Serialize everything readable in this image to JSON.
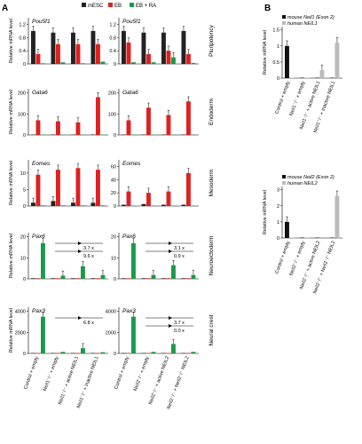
{
  "figure": {
    "label_a": "A",
    "label_b": "B",
    "row_labels": [
      "Pluripotency",
      "Endoderm",
      "Mesoderm",
      "Neuroectoderm",
      "Neural crest"
    ]
  },
  "legend": {
    "items": [
      {
        "label": "mESC",
        "color": "#222222"
      },
      {
        "label": "EB",
        "color": "#e02020"
      },
      {
        "label": "EB + RA",
        "color": "#1a9a4a"
      }
    ]
  },
  "xlabels": {
    "col1": [
      "Control + empty",
      "Neil1⁻/⁻ + empty",
      "Neil1⁻/⁻ + active NEIL1",
      "Neil1⁻/⁻ + inactive NEIL1"
    ],
    "col2": [
      "Control + empty",
      "Neil2⁻/⁻ + empty",
      "Neil2⁻/⁻ + active NEIL2",
      "Neil2⁻/⁻ + Neil2⁻/⁻ NEIL2"
    ]
  },
  "annotations": {
    "pax6_col1": [
      "3.7 x",
      "9.6 x"
    ],
    "pax6_col2": [
      "3.1 x",
      "0.9 x"
    ],
    "pax3_col1": [
      "6.8 x"
    ],
    "pax3_col2": [
      "3.7 x",
      "0.0 x"
    ]
  },
  "chart_data": [
    {
      "type": "bar",
      "panel": "A",
      "title": "Pou5f1",
      "ylabel": "Relative mRNA level",
      "ylim": [
        0,
        1.4
      ],
      "yticks": [
        0,
        0.4,
        0.8,
        1.2
      ],
      "categories": [
        "Control + empty",
        "Neil1⁻/⁻ + empty",
        "Neil1⁻/⁻ + active NEIL1",
        "Neil1⁻/⁻ + inactive NEIL1"
      ],
      "series": [
        {
          "name": "mESC",
          "values": [
            1.0,
            0.95,
            0.95,
            1.0
          ]
        },
        {
          "name": "EB",
          "values": [
            0.3,
            0.6,
            0.6,
            0.6
          ]
        },
        {
          "name": "EB + RA",
          "values": [
            0.02,
            0.05,
            0.02,
            0.07
          ]
        }
      ]
    },
    {
      "type": "bar",
      "panel": "A",
      "title": "Pou5f1",
      "ylabel": "",
      "ylim": [
        0,
        1.4
      ],
      "yticks": [
        0,
        0.4,
        0.8,
        1.2
      ],
      "categories": [
        "Control + empty",
        "Neil2⁻/⁻ + empty",
        "Neil2⁻/⁻ + active NEIL2",
        "Neil2⁻/⁻ + Neil2⁻/⁻ NEIL2"
      ],
      "series": [
        {
          "name": "mESC",
          "values": [
            1.0,
            0.95,
            0.95,
            1.0
          ]
        },
        {
          "name": "EB",
          "values": [
            0.65,
            0.3,
            0.4,
            0.3
          ]
        },
        {
          "name": "EB + RA",
          "values": [
            0.05,
            0.05,
            0.2,
            0.03
          ]
        }
      ]
    },
    {
      "type": "bar",
      "panel": "A",
      "title": "Gata6",
      "ylabel": "Relative mRNA level",
      "ylim": [
        0,
        220
      ],
      "yticks": [
        0,
        100,
        200
      ],
      "categories": [
        "Control + empty",
        "Neil1⁻/⁻ + empty",
        "Neil1⁻/⁻ + active NEIL1",
        "Neil1⁻/⁻ + inactive NEIL1"
      ],
      "series": [
        {
          "name": "mESC",
          "values": [
            1,
            1,
            1,
            1
          ]
        },
        {
          "name": "EB",
          "values": [
            70,
            65,
            60,
            180
          ]
        },
        {
          "name": "EB + RA",
          "values": [
            1,
            1,
            1,
            1
          ]
        }
      ]
    },
    {
      "type": "bar",
      "panel": "A",
      "title": "Gata6",
      "ylabel": "",
      "ylim": [
        0,
        220
      ],
      "yticks": [
        0,
        100,
        200
      ],
      "categories": [
        "Control + empty",
        "Neil2⁻/⁻ + empty",
        "Neil2⁻/⁻ + active NEIL2",
        "Neil2⁻/⁻ + Neil2⁻/⁻ NEIL2"
      ],
      "series": [
        {
          "name": "mESC",
          "values": [
            1,
            1,
            1,
            1
          ]
        },
        {
          "name": "EB",
          "values": [
            70,
            130,
            95,
            160
          ]
        },
        {
          "name": "EB + RA",
          "values": [
            1,
            1,
            1,
            1
          ]
        }
      ]
    },
    {
      "type": "bar",
      "panel": "A",
      "title": "Eomes",
      "ylabel": "Relative mRNA level",
      "ylim": [
        0,
        14
      ],
      "yticks": [
        0,
        5,
        10
      ],
      "categories": [
        "Control + empty",
        "Neil1⁻/⁻ + empty",
        "Neil1⁻/⁻ + active NEIL1",
        "Neil1⁻/⁻ + inactive NEIL1"
      ],
      "series": [
        {
          "name": "mESC",
          "values": [
            1,
            1.5,
            1,
            1
          ]
        },
        {
          "name": "EB",
          "values": [
            9.5,
            11,
            11.5,
            11
          ]
        },
        {
          "name": "EB + RA",
          "values": [
            0.2,
            0.2,
            0.2,
            0.2
          ]
        }
      ]
    },
    {
      "type": "bar",
      "panel": "A",
      "title": "Eomes",
      "ylabel": "",
      "ylim": [
        0,
        70
      ],
      "yticks": [
        0,
        20,
        40,
        60
      ],
      "categories": [
        "Control + empty",
        "Neil2⁻/⁻ + empty",
        "Neil2⁻/⁻ + active NEIL2",
        "Neil2⁻/⁻ + Neil2⁻/⁻ NEIL2"
      ],
      "series": [
        {
          "name": "mESC",
          "values": [
            2,
            3,
            2,
            2
          ]
        },
        {
          "name": "EB",
          "values": [
            22,
            20,
            22,
            50
          ]
        },
        {
          "name": "EB + RA",
          "values": [
            0.5,
            0.5,
            0.5,
            0.5
          ]
        }
      ]
    },
    {
      "type": "bar",
      "panel": "A",
      "title": "Pax6",
      "ylabel": "Relative mRNA level",
      "ylim": [
        0,
        22
      ],
      "yticks": [
        0,
        10,
        20
      ],
      "categories": [
        "Control + empty",
        "Neil1⁻/⁻ + empty",
        "Neil1⁻/⁻ + active NEIL1",
        "Neil1⁻/⁻ + inactive NEIL1"
      ],
      "series": [
        {
          "name": "mESC",
          "values": [
            0.3,
            0.3,
            0.3,
            0.3
          ]
        },
        {
          "name": "EB",
          "values": [
            0.3,
            0.3,
            0.3,
            0.3
          ]
        },
        {
          "name": "EB + RA",
          "values": [
            17,
            1.5,
            6,
            1.8
          ]
        }
      ]
    },
    {
      "type": "bar",
      "panel": "A",
      "title": "Pax6",
      "ylabel": "",
      "ylim": [
        0,
        22
      ],
      "yticks": [
        0,
        10,
        20
      ],
      "categories": [
        "Control + empty",
        "Neil2⁻/⁻ + empty",
        "Neil2⁻/⁻ + active NEIL2",
        "Neil2⁻/⁻ + Neil2⁻/⁻ NEIL2"
      ],
      "series": [
        {
          "name": "mESC",
          "values": [
            0.3,
            0.3,
            0.3,
            0.3
          ]
        },
        {
          "name": "EB",
          "values": [
            0.3,
            0.3,
            0.3,
            0.3
          ]
        },
        {
          "name": "EB + RA",
          "values": [
            17,
            1.8,
            6.5,
            1.8
          ]
        }
      ]
    },
    {
      "type": "bar",
      "panel": "A",
      "title": "Pax3",
      "ylabel": "Relative mRNA level",
      "ylim": [
        0,
        4400
      ],
      "yticks": [
        0,
        2000,
        4000
      ],
      "categories": [
        "Control + empty",
        "Neil1⁻/⁻ + empty",
        "Neil1⁻/⁻ + active NEIL1",
        "Neil1⁻/⁻ + inactive NEIL1"
      ],
      "series": [
        {
          "name": "mESC",
          "values": [
            5,
            5,
            5,
            5
          ]
        },
        {
          "name": "EB",
          "values": [
            5,
            5,
            5,
            5
          ]
        },
        {
          "name": "EB + RA",
          "values": [
            3500,
            150,
            500,
            120
          ]
        }
      ]
    },
    {
      "type": "bar",
      "panel": "A",
      "title": "Pax3",
      "ylabel": "",
      "ylim": [
        0,
        4400
      ],
      "yticks": [
        0,
        2000,
        4000
      ],
      "categories": [
        "Control + empty",
        "Neil2⁻/⁻ + empty",
        "Neil2⁻/⁻ + active NEIL2",
        "Neil2⁻/⁻ + Neil2⁻/⁻ NEIL2"
      ],
      "series": [
        {
          "name": "mESC",
          "values": [
            5,
            5,
            5,
            5
          ]
        },
        {
          "name": "EB",
          "values": [
            5,
            5,
            5,
            5
          ]
        },
        {
          "name": "EB + RA",
          "values": [
            3500,
            150,
            900,
            150
          ]
        }
      ]
    },
    {
      "type": "bar",
      "panel": "B",
      "title": "",
      "ylabel": "Relative mRNA level",
      "ylim": [
        0,
        1.6
      ],
      "yticks": [
        0,
        0.5,
        1,
        1.5
      ],
      "categories": [
        "Control + empty",
        "Neil1⁻/⁻ + empty",
        "Neil1⁻/⁻ + active NEIL1",
        "Neil1⁻/⁻ + inactive NEIL1"
      ],
      "series": [
        {
          "name": "mouse Neil1 (Exon 2)",
          "values": [
            1.0,
            0.0,
            0.0,
            0.0
          ]
        },
        {
          "name": "human NEIL1",
          "values": [
            0.0,
            0.0,
            0.25,
            1.1
          ]
        }
      ]
    },
    {
      "type": "bar",
      "panel": "B",
      "title": "",
      "ylabel": "Relative mRNA level",
      "ylim": [
        0,
        3.2
      ],
      "yticks": [
        0,
        1,
        2,
        3
      ],
      "categories": [
        "Control + empty",
        "Neil2⁻/⁻ + empty",
        "Neil2⁻/⁻ + active NEIL2",
        "Neil2⁻/⁻ + Neil2⁻/⁻ NEIL2"
      ],
      "series": [
        {
          "name": "mouse Neil2 (Exon 2)",
          "values": [
            1.0,
            0.0,
            0.0,
            0.0
          ]
        },
        {
          "name": "human NEIL2",
          "values": [
            0.0,
            0.0,
            0.05,
            2.6
          ]
        }
      ]
    }
  ]
}
